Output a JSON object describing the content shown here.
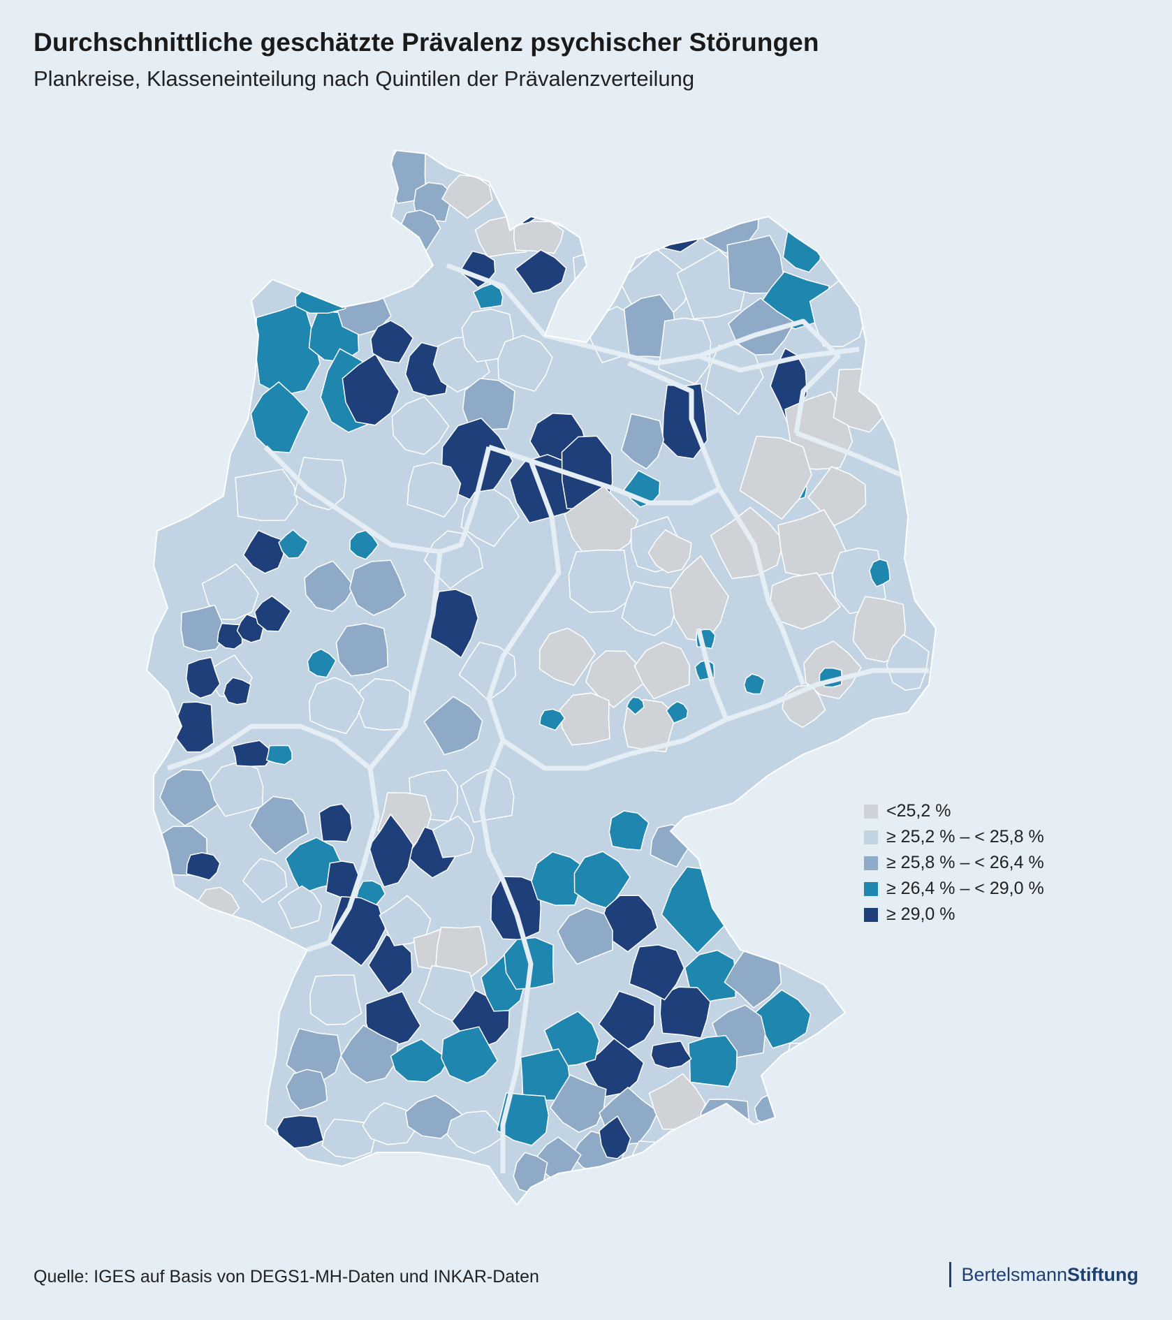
{
  "title": "Durchschnittliche geschätzte Prävalenz psychischer Störungen",
  "subtitle": "Plankreise, Klasseneinteilung nach Quintilen der Prävalenzverteilung",
  "legend": [
    {
      "label": "<25,2 %",
      "color": "#cfd3d8"
    },
    {
      "label": "≥ 25,2 % – < 25,8 %",
      "color": "#c2d3e3"
    },
    {
      "label": "≥ 25,8 % – < 26,4 %",
      "color": "#8eaac6"
    },
    {
      "label": "≥ 26,4 % – < 29,0 %",
      "color": "#1f86b0"
    },
    {
      "label": "≥ 29,0 %",
      "color": "#1e3f7a"
    }
  ],
  "colors": {
    "background": "#e5edf5",
    "border": "#ffffff",
    "state_border": "#e5edf5"
  },
  "source": "Quelle: IGES auf Basis von DEGS1-MH-Daten und INKAR-Daten",
  "logo": {
    "regular": "Bertelsmann",
    "bold": "Stiftung"
  }
}
